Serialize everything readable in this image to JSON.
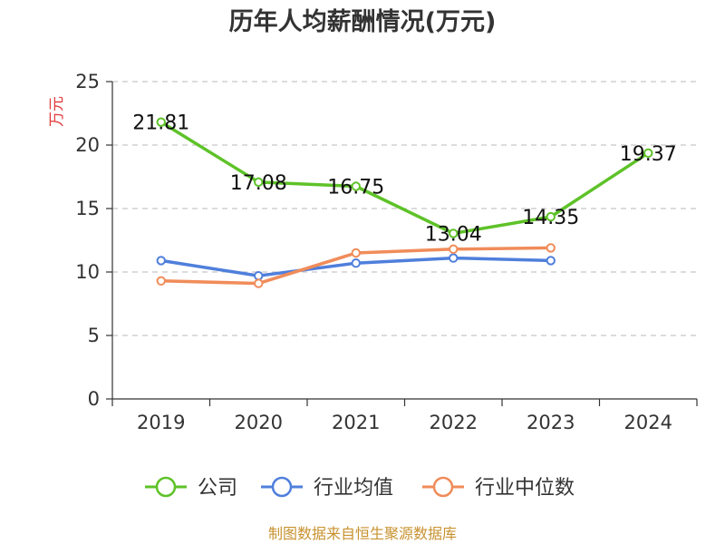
{
  "chart_data": {
    "type": "line",
    "title": "历年人均薪酬情况(万元)",
    "ylabel": "万元",
    "xlabel": "",
    "categories": [
      "2019",
      "2020",
      "2021",
      "2022",
      "2023",
      "2024"
    ],
    "ylim": [
      0,
      25
    ],
    "yticks": [
      0,
      5,
      10,
      15,
      20,
      25
    ],
    "grid": "horizontal dashed",
    "legend_position": "bottom",
    "series": [
      {
        "name": "公司",
        "color": "#5ec228",
        "values": [
          21.81,
          17.08,
          16.75,
          13.04,
          14.35,
          19.37
        ],
        "labels": [
          "21.81",
          "17.08",
          "16.75",
          "13.04",
          "14.35",
          "19.37"
        ]
      },
      {
        "name": "行业均值",
        "color": "#4f7fdc",
        "values": [
          10.9,
          9.7,
          10.7,
          11.1,
          10.9,
          null
        ]
      },
      {
        "name": "行业中位数",
        "color": "#f08c5a",
        "values": [
          9.3,
          9.1,
          11.5,
          11.8,
          11.9,
          null
        ]
      }
    ],
    "source": "制图数据来自恒生聚源数据库"
  }
}
